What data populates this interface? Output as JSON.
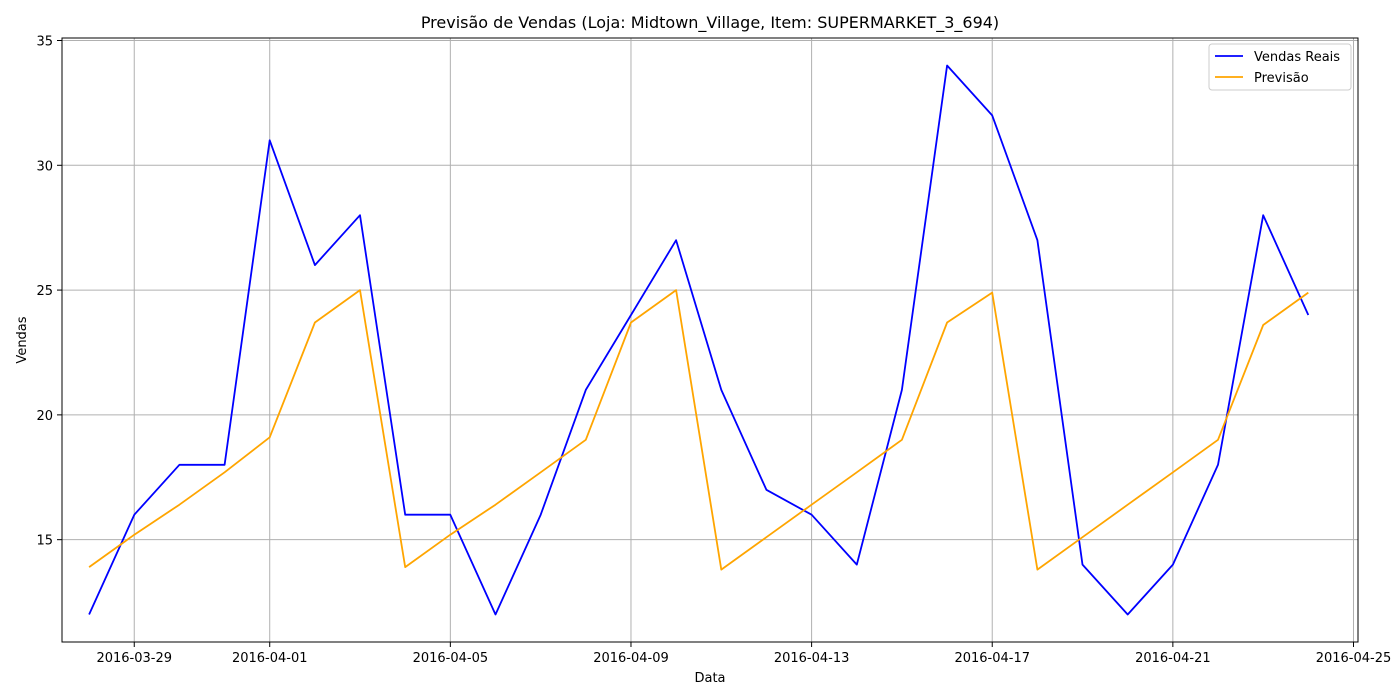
{
  "chart_data": {
    "type": "line",
    "title": "Previsão de Vendas (Loja: Midtown_Village, Item: SUPERMARKET_3_694)",
    "xlabel": "Data",
    "ylabel": "Vendas",
    "x": [
      "2016-03-28",
      "2016-03-29",
      "2016-03-30",
      "2016-03-31",
      "2016-04-01",
      "2016-04-02",
      "2016-04-03",
      "2016-04-04",
      "2016-04-05",
      "2016-04-06",
      "2016-04-07",
      "2016-04-08",
      "2016-04-09",
      "2016-04-10",
      "2016-04-11",
      "2016-04-12",
      "2016-04-13",
      "2016-04-14",
      "2016-04-15",
      "2016-04-16",
      "2016-04-17",
      "2016-04-18",
      "2016-04-19",
      "2016-04-20",
      "2016-04-21",
      "2016-04-22",
      "2016-04-23",
      "2016-04-24"
    ],
    "x_ticks": [
      "2016-03-29",
      "2016-04-01",
      "2016-04-05",
      "2016-04-09",
      "2016-04-13",
      "2016-04-17",
      "2016-04-21",
      "2016-04-25"
    ],
    "y_ticks": [
      15,
      20,
      25,
      30,
      35
    ],
    "xlim": [
      "2016-03-27",
      "2016-04-25"
    ],
    "ylim": [
      10.9,
      35.1
    ],
    "grid": true,
    "legend_position": "top-right",
    "series": [
      {
        "name": "Vendas Reais",
        "color": "#0000ff",
        "values": [
          12,
          16,
          18,
          18,
          31,
          26,
          28,
          16,
          16,
          12,
          16,
          21,
          24,
          27,
          21,
          17,
          16,
          14,
          21,
          34,
          32,
          27,
          14,
          12,
          14,
          18,
          28,
          24
        ]
      },
      {
        "name": "Previsão",
        "color": "#ffa500",
        "values": [
          13.9,
          15.2,
          16.4,
          17.7,
          19.1,
          23.7,
          25.0,
          13.9,
          15.2,
          16.4,
          17.7,
          19.0,
          23.7,
          25.0,
          13.8,
          15.1,
          16.4,
          17.7,
          19.0,
          23.7,
          24.9,
          13.8,
          15.1,
          16.4,
          17.7,
          19.0,
          23.6,
          24.9
        ]
      }
    ]
  }
}
